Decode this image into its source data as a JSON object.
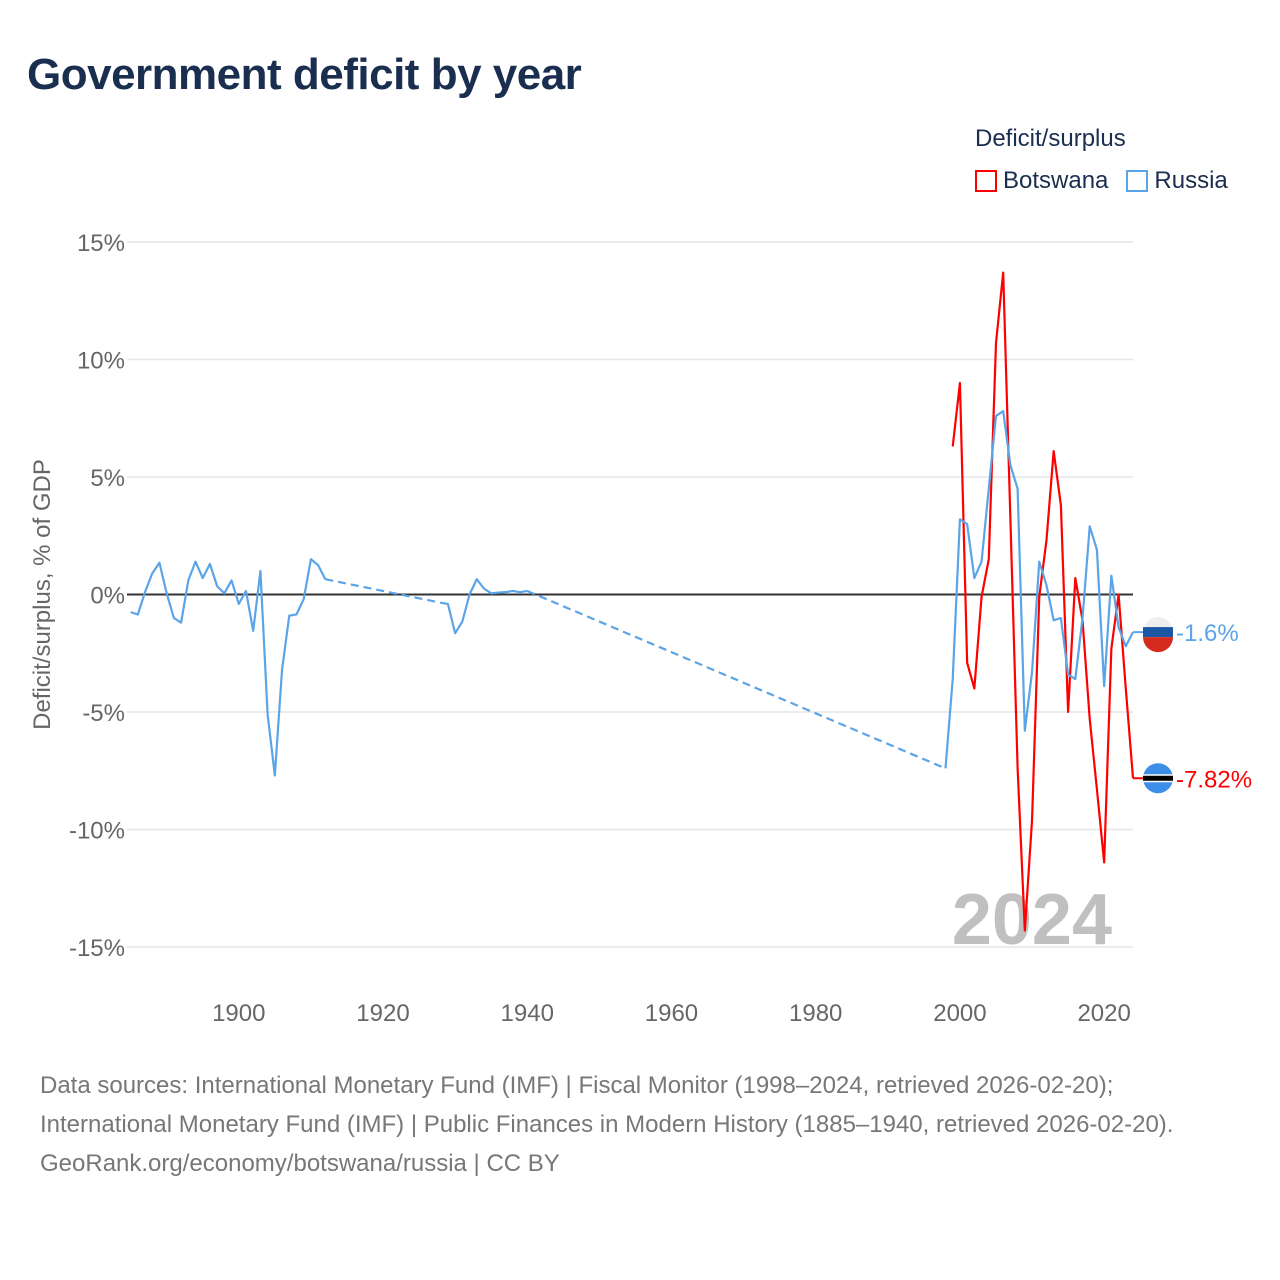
{
  "chart_data": {
    "type": "line",
    "title": "Government deficit by year",
    "xlabel": "",
    "ylabel": "Deficit/surplus, % of GDP",
    "xlim": [
      1884.5,
      2024
    ],
    "ylim": [
      -15,
      15
    ],
    "yticks": [
      15,
      10,
      5,
      0,
      -5,
      -10,
      -15
    ],
    "ytick_labels": [
      "15%",
      "10%",
      "5%",
      "0%",
      "-5%",
      "-10%",
      "-15%"
    ],
    "xticks": [
      1900,
      1920,
      1940,
      1960,
      1980,
      2000,
      2020
    ],
    "xtick_labels": [
      "1900",
      "1920",
      "1940",
      "1960",
      "1980",
      "2000",
      "2020"
    ],
    "grid": true,
    "legend_title": "Deficit/surplus",
    "legend_position": "top-right",
    "watermark_year": "2024",
    "series": [
      {
        "name": "Botswana",
        "color": "#ff0000",
        "end_label": "-7.82%",
        "points": [
          [
            1999,
            6.3
          ],
          [
            2000,
            9.0
          ],
          [
            2001,
            -2.9
          ],
          [
            2002,
            -4.0
          ],
          [
            2003,
            -0.1
          ],
          [
            2004,
            1.5
          ],
          [
            2005,
            10.7
          ],
          [
            2006,
            13.7
          ],
          [
            2007,
            3.2
          ],
          [
            2008,
            -7.4
          ],
          [
            2009,
            -14.3
          ],
          [
            2010,
            -9.6
          ],
          [
            2011,
            -0.1
          ],
          [
            2012,
            2.3
          ],
          [
            2013,
            6.1
          ],
          [
            2014,
            3.8
          ],
          [
            2015,
            -5.0
          ],
          [
            2016,
            0.7
          ],
          [
            2017,
            -1.1
          ],
          [
            2018,
            -5.3
          ],
          [
            2019,
            -8.3
          ],
          [
            2020,
            -11.4
          ],
          [
            2021,
            -2.3
          ],
          [
            2022,
            0.0
          ],
          [
            2023,
            -4.0
          ],
          [
            2024,
            -7.82
          ]
        ]
      },
      {
        "name": "Russia",
        "color": "#5ba4e8",
        "end_label": "-1.6%",
        "points": [
          [
            1885,
            -0.75
          ],
          [
            1886,
            -0.85
          ],
          [
            1887,
            0.1
          ],
          [
            1888,
            0.9
          ],
          [
            1889,
            1.35
          ],
          [
            1890,
            0.05
          ],
          [
            1891,
            -1.0
          ],
          [
            1892,
            -1.2
          ],
          [
            1893,
            0.6
          ],
          [
            1894,
            1.4
          ],
          [
            1895,
            0.7
          ],
          [
            1896,
            1.3
          ],
          [
            1897,
            0.35
          ],
          [
            1898,
            0.05
          ],
          [
            1899,
            0.6
          ],
          [
            1900,
            -0.4
          ],
          [
            1901,
            0.15
          ],
          [
            1902,
            -1.55
          ],
          [
            1903,
            1.0
          ],
          [
            1904,
            -5.1
          ],
          [
            1905,
            -7.7
          ],
          [
            1906,
            -3.2
          ],
          [
            1907,
            -0.9
          ],
          [
            1908,
            -0.85
          ],
          [
            1909,
            -0.2
          ],
          [
            1910,
            1.5
          ],
          [
            1911,
            1.25
          ],
          [
            1912,
            0.65
          ],
          [
            1928,
            -0.35
          ],
          [
            1929,
            -0.4
          ],
          [
            1930,
            -1.65
          ],
          [
            1931,
            -1.15
          ],
          [
            1932,
            0.0
          ],
          [
            1933,
            0.65
          ],
          [
            1934,
            0.25
          ],
          [
            1935,
            0.05
          ],
          [
            1936,
            0.08
          ],
          [
            1937,
            0.1
          ],
          [
            1938,
            0.15
          ],
          [
            1939,
            0.1
          ],
          [
            1940,
            0.15
          ],
          [
            1998,
            -7.4
          ],
          [
            1999,
            -3.6
          ],
          [
            2000,
            3.2
          ],
          [
            2001,
            3.0
          ],
          [
            2002,
            0.7
          ],
          [
            2003,
            1.4
          ],
          [
            2004,
            4.5
          ],
          [
            2005,
            7.6
          ],
          [
            2006,
            7.8
          ],
          [
            2007,
            5.5
          ],
          [
            2008,
            4.5
          ],
          [
            2009,
            -5.8
          ],
          [
            2010,
            -3.3
          ],
          [
            2011,
            1.4
          ],
          [
            2012,
            0.4
          ],
          [
            2013,
            -1.1
          ],
          [
            2014,
            -1.0
          ],
          [
            2015,
            -3.4
          ],
          [
            2016,
            -3.6
          ],
          [
            2017,
            -1.0
          ],
          [
            2018,
            2.9
          ],
          [
            2019,
            1.9
          ],
          [
            2020,
            -3.9
          ],
          [
            2021,
            0.8
          ],
          [
            2022,
            -1.4
          ],
          [
            2023,
            -2.2
          ],
          [
            2024,
            -1.6
          ]
        ]
      }
    ]
  },
  "footer": {
    "sources": "Data sources: International Monetary Fund (IMF) | Fiscal Monitor (1998–2024, retrieved 2026-02-20); International Monetary Fund (IMF) | Public Finances in Modern History (1885–1940, retrieved 2026-02-20).",
    "link": "GeoRank.org/economy/botswana/russia | CC BY"
  }
}
